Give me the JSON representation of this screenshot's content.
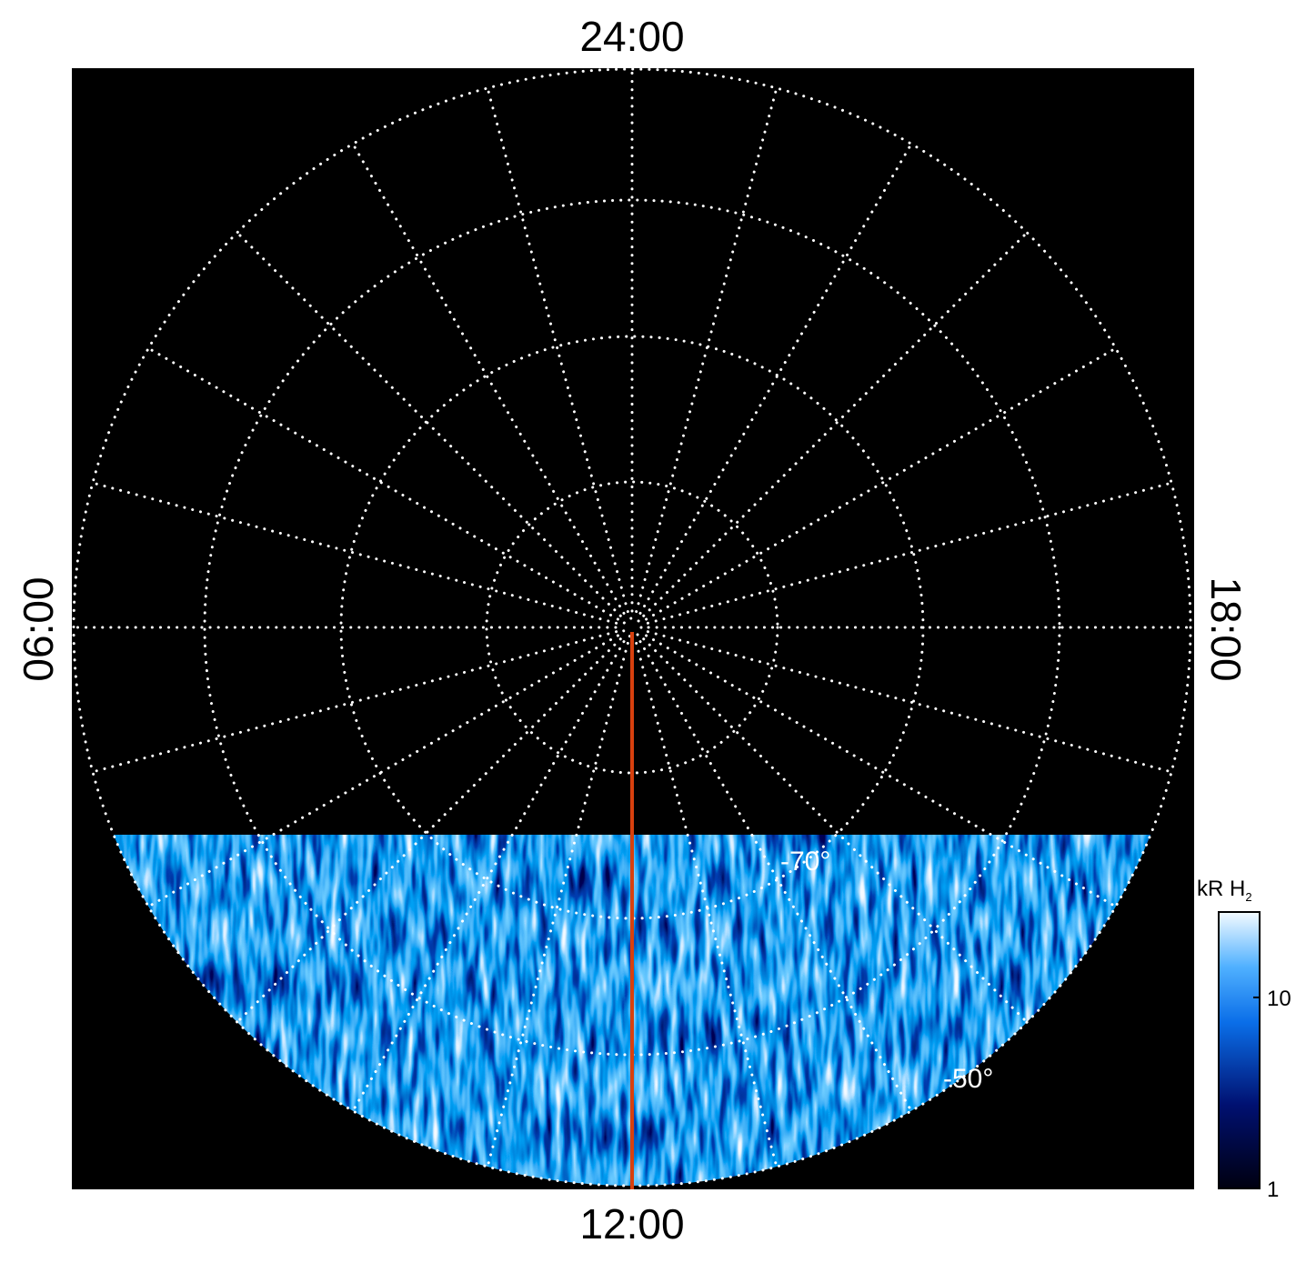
{
  "labels": {
    "top": "24:00",
    "bottom": "12:00",
    "left": "06:00",
    "right": "18:00"
  },
  "latitude_labels": [
    "-70°",
    "-50°"
  ],
  "colorbar": {
    "label": "kR H",
    "label_subscript": "2",
    "log": true,
    "lim": [
      1,
      28
    ],
    "ticks": [
      1,
      10
    ]
  }
}
